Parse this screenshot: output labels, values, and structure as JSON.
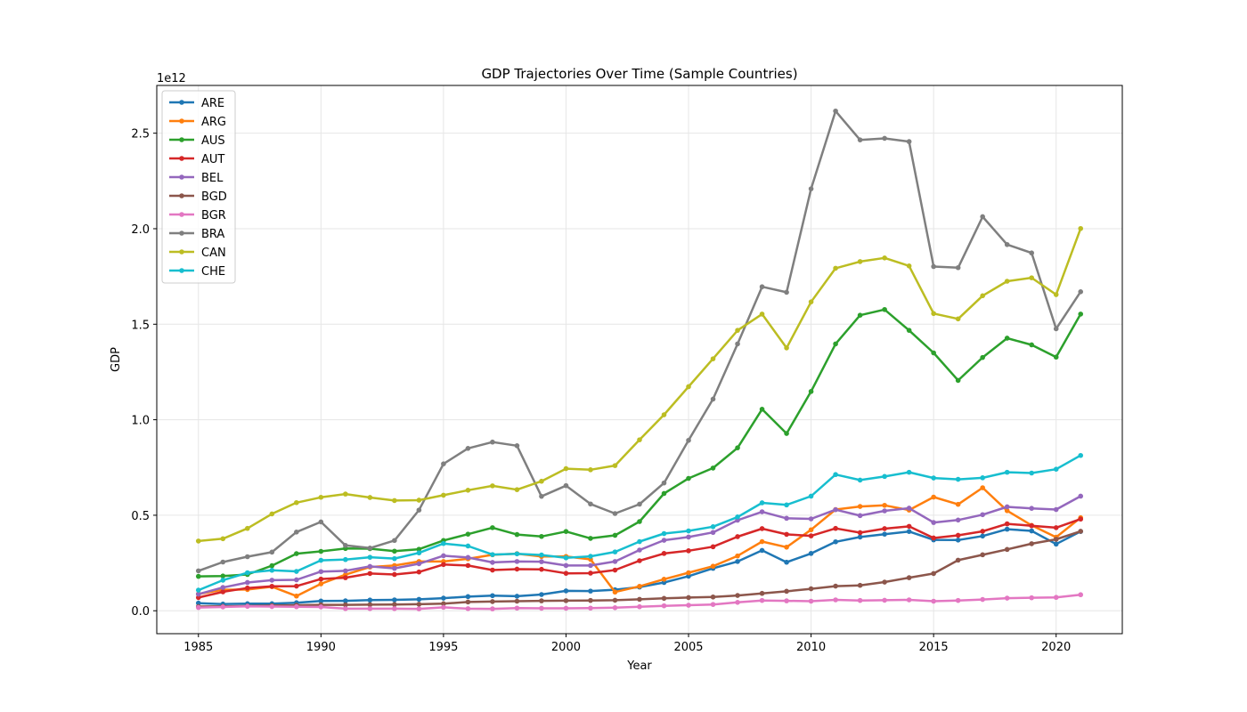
{
  "chart_data": {
    "type": "line",
    "title": "GDP Trajectories Over Time (Sample Countries)",
    "xlabel": "Year",
    "ylabel": "GDP",
    "y_offset_text": "1e12",
    "xlim": [
      1983.3,
      2022.7
    ],
    "ylim": [
      -0.12,
      2.75
    ],
    "y_unit_scale": "1e12",
    "x_ticks": [
      1985,
      1990,
      1995,
      2000,
      2005,
      2010,
      2015,
      2020
    ],
    "y_ticks": [
      0.0,
      0.5,
      1.0,
      1.5,
      2.0,
      2.5
    ],
    "y_tick_labels": [
      "0.0",
      "0.5",
      "1.0",
      "1.5",
      "2.0",
      "2.5"
    ],
    "grid": true,
    "legend_position": "upper-left",
    "x": [
      1985,
      1986,
      1987,
      1988,
      1989,
      1990,
      1991,
      1992,
      1993,
      1994,
      1995,
      1996,
      1997,
      1998,
      1999,
      2000,
      2001,
      2002,
      2003,
      2004,
      2005,
      2006,
      2007,
      2008,
      2009,
      2010,
      2011,
      2012,
      2013,
      2014,
      2015,
      2016,
      2017,
      2018,
      2019,
      2020,
      2021
    ],
    "series": [
      {
        "name": "ARE",
        "color": "#1f77b4",
        "values": [
          0.04,
          0.035,
          0.037,
          0.037,
          0.042,
          0.051,
          0.052,
          0.056,
          0.057,
          0.06,
          0.066,
          0.074,
          0.079,
          0.076,
          0.085,
          0.104,
          0.103,
          0.11,
          0.124,
          0.148,
          0.181,
          0.222,
          0.258,
          0.316,
          0.254,
          0.3,
          0.361,
          0.386,
          0.401,
          0.415,
          0.371,
          0.37,
          0.391,
          0.427,
          0.418,
          0.349,
          0.415
        ]
      },
      {
        "name": "ARG",
        "color": "#ff7f0e",
        "values": [
          0.088,
          0.11,
          0.111,
          0.126,
          0.077,
          0.141,
          0.189,
          0.229,
          0.237,
          0.258,
          0.258,
          0.272,
          0.293,
          0.299,
          0.284,
          0.284,
          0.269,
          0.098,
          0.128,
          0.165,
          0.199,
          0.233,
          0.287,
          0.362,
          0.333,
          0.424,
          0.53,
          0.546,
          0.552,
          0.527,
          0.595,
          0.557,
          0.644,
          0.524,
          0.447,
          0.385,
          0.487
        ]
      },
      {
        "name": "AUS",
        "color": "#2ca02c",
        "values": [
          0.18,
          0.182,
          0.19,
          0.236,
          0.299,
          0.311,
          0.326,
          0.325,
          0.312,
          0.322,
          0.368,
          0.401,
          0.435,
          0.399,
          0.389,
          0.415,
          0.379,
          0.395,
          0.467,
          0.614,
          0.693,
          0.747,
          0.853,
          1.055,
          0.928,
          1.148,
          1.397,
          1.547,
          1.577,
          1.468,
          1.35,
          1.206,
          1.326,
          1.427,
          1.392,
          1.328,
          1.553
        ]
      },
      {
        "name": "AUT",
        "color": "#d62728",
        "values": [
          0.069,
          0.099,
          0.119,
          0.128,
          0.129,
          0.166,
          0.173,
          0.195,
          0.19,
          0.203,
          0.242,
          0.237,
          0.213,
          0.218,
          0.217,
          0.196,
          0.197,
          0.213,
          0.262,
          0.3,
          0.314,
          0.335,
          0.388,
          0.43,
          0.4,
          0.392,
          0.431,
          0.409,
          0.43,
          0.442,
          0.381,
          0.395,
          0.416,
          0.455,
          0.445,
          0.435,
          0.48
        ]
      },
      {
        "name": "BEL",
        "color": "#9467bd",
        "values": [
          0.087,
          0.122,
          0.148,
          0.16,
          0.162,
          0.205,
          0.209,
          0.232,
          0.222,
          0.246,
          0.288,
          0.279,
          0.253,
          0.258,
          0.257,
          0.237,
          0.237,
          0.258,
          0.318,
          0.369,
          0.386,
          0.41,
          0.474,
          0.518,
          0.484,
          0.481,
          0.529,
          0.498,
          0.523,
          0.537,
          0.462,
          0.475,
          0.503,
          0.544,
          0.536,
          0.53,
          0.6
        ]
      },
      {
        "name": "BGD",
        "color": "#8c564b",
        "values": [
          0.022,
          0.023,
          0.025,
          0.027,
          0.029,
          0.031,
          0.031,
          0.032,
          0.033,
          0.034,
          0.037,
          0.046,
          0.048,
          0.05,
          0.052,
          0.053,
          0.054,
          0.055,
          0.06,
          0.065,
          0.069,
          0.072,
          0.08,
          0.091,
          0.102,
          0.115,
          0.129,
          0.133,
          0.15,
          0.173,
          0.195,
          0.265,
          0.293,
          0.321,
          0.351,
          0.374,
          0.416
        ]
      },
      {
        "name": "BGR",
        "color": "#e377c2",
        "values": [
          0.017,
          0.02,
          0.023,
          0.022,
          0.021,
          0.02,
          0.011,
          0.011,
          0.011,
          0.01,
          0.018,
          0.011,
          0.01,
          0.014,
          0.013,
          0.013,
          0.014,
          0.016,
          0.021,
          0.026,
          0.029,
          0.033,
          0.044,
          0.054,
          0.052,
          0.05,
          0.057,
          0.054,
          0.055,
          0.057,
          0.05,
          0.054,
          0.059,
          0.066,
          0.068,
          0.07,
          0.084
        ]
      },
      {
        "name": "BRA",
        "color": "#7f7f7f",
        "values": [
          0.209,
          0.255,
          0.283,
          0.307,
          0.412,
          0.465,
          0.342,
          0.328,
          0.368,
          0.527,
          0.769,
          0.85,
          0.883,
          0.864,
          0.599,
          0.655,
          0.559,
          0.509,
          0.558,
          0.669,
          0.892,
          1.108,
          1.397,
          1.696,
          1.667,
          2.209,
          2.616,
          2.465,
          2.473,
          2.456,
          1.802,
          1.796,
          2.063,
          1.917,
          1.873,
          1.476,
          1.67
        ]
      },
      {
        "name": "CAN",
        "color": "#bcbd22",
        "values": [
          0.365,
          0.377,
          0.431,
          0.507,
          0.566,
          0.594,
          0.611,
          0.593,
          0.577,
          0.579,
          0.605,
          0.631,
          0.654,
          0.634,
          0.678,
          0.744,
          0.738,
          0.76,
          0.895,
          1.026,
          1.173,
          1.319,
          1.468,
          1.553,
          1.376,
          1.617,
          1.793,
          1.828,
          1.847,
          1.805,
          1.556,
          1.528,
          1.649,
          1.725,
          1.743,
          1.655,
          2.001
        ]
      },
      {
        "name": "CHE",
        "color": "#17becf",
        "values": [
          0.108,
          0.16,
          0.199,
          0.212,
          0.206,
          0.264,
          0.268,
          0.28,
          0.273,
          0.303,
          0.352,
          0.339,
          0.294,
          0.298,
          0.292,
          0.277,
          0.285,
          0.308,
          0.362,
          0.404,
          0.418,
          0.44,
          0.491,
          0.565,
          0.554,
          0.6,
          0.713,
          0.684,
          0.703,
          0.725,
          0.695,
          0.688,
          0.696,
          0.725,
          0.721,
          0.741,
          0.813
        ]
      }
    ]
  }
}
